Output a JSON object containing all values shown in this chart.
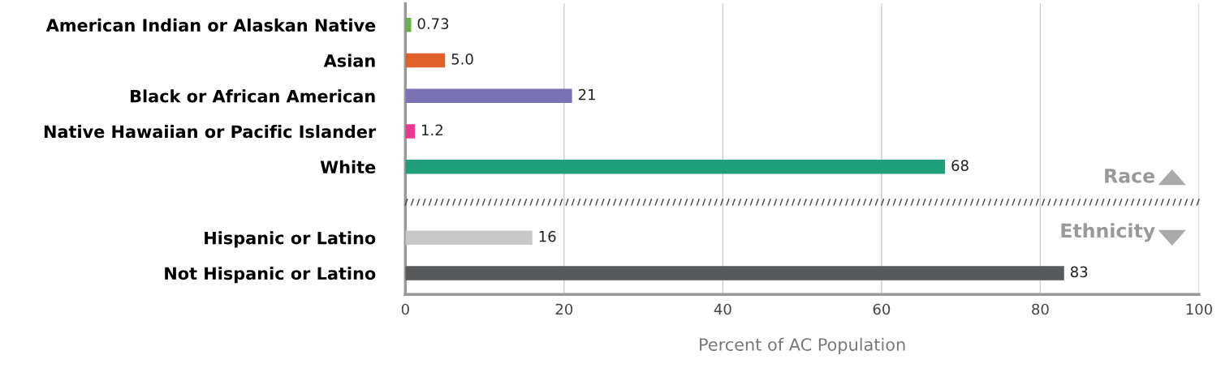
{
  "chart_data": {
    "type": "bar",
    "orientation": "horizontal",
    "xlabel": "Percent of AC Population",
    "categories": [
      "American Indian or Alaskan Native",
      "Asian",
      "Black or African American",
      "Native Hawaiian or Pacific Islander",
      "White",
      null,
      "Hispanic or Latino",
      "Not Hispanic or Latino"
    ],
    "values": [
      0.73,
      5.0,
      21,
      1.2,
      68,
      null,
      16,
      83
    ],
    "colors": [
      "#6ab04c",
      "#e0622a",
      "#7b73b6",
      "#e8388f",
      "#1fa07a",
      "#ffffff",
      "#c8c8c8",
      "#58595b"
    ],
    "value_labels": [
      "0.73",
      "5.0",
      "21",
      "1.2",
      "68",
      null,
      "16",
      "83"
    ],
    "xlim": [
      0,
      100
    ],
    "xticks": [
      0,
      20,
      40,
      60,
      80,
      100
    ],
    "grid": "x",
    "annotations": [
      "Race",
      "Ethnicity"
    ]
  }
}
